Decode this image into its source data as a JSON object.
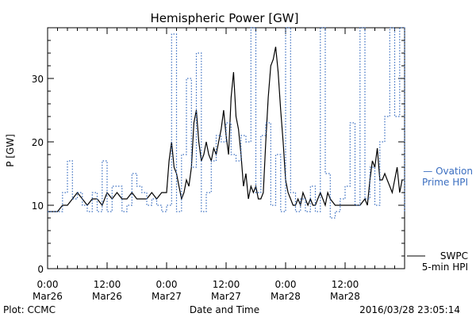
{
  "chart_data": {
    "type": "line",
    "title": "Hemispheric Power [GW]",
    "xlabel": "Date and Time",
    "ylabel": "P [GW]",
    "ylim": [
      0,
      38
    ],
    "yticks": [
      0,
      10,
      20,
      30
    ],
    "xlim_hours": [
      0,
      72
    ],
    "xticks": [
      {
        "time": "0:00",
        "date": "Mar26"
      },
      {
        "time": "12:00",
        "date": "Mar26"
      },
      {
        "time": "0:00",
        "date": "Mar27"
      },
      {
        "time": "12:00",
        "date": "Mar27"
      },
      {
        "time": "0:00",
        "date": "Mar28"
      },
      {
        "time": "12:00",
        "date": "Mar28"
      }
    ],
    "footer_left": "Plot: CCMC",
    "footer_right": "2016/03/28 23:05:14",
    "series": [
      {
        "name": "SWPC 5-min HPI",
        "legend_lines": [
          "SWPC",
          "5-min HPI"
        ],
        "color": "#000000",
        "style": "solid",
        "x": [
          0,
          2,
          3,
          4,
          5,
          6,
          7,
          8,
          9,
          10,
          11,
          12,
          13,
          14,
          15,
          16,
          17,
          18,
          19,
          20,
          21,
          22,
          23,
          24,
          24.5,
          25,
          25.5,
          26,
          26.5,
          27,
          27.5,
          28,
          28.5,
          29,
          29.5,
          30,
          30.5,
          31,
          31.5,
          32,
          32.5,
          33,
          33.5,
          34,
          34.5,
          35,
          35.5,
          36,
          36.5,
          37,
          37.5,
          38,
          38.5,
          39,
          39.5,
          40,
          40.5,
          41,
          41.5,
          42,
          42.5,
          43,
          43.5,
          44,
          44.5,
          45,
          45.5,
          46,
          46.5,
          47,
          47.5,
          48,
          48.5,
          49,
          49.5,
          50,
          50.5,
          51,
          51.5,
          52,
          52.5,
          53,
          53.5,
          54,
          54.5,
          55,
          55.5,
          56,
          56.5,
          57,
          58,
          59,
          60,
          61,
          62,
          63,
          64,
          64.5,
          65,
          65.5,
          66,
          66.5,
          67,
          67.5,
          68,
          68.5,
          69,
          69.5,
          70,
          70.5,
          71,
          71.5
        ],
        "y": [
          9,
          9,
          10,
          10,
          11,
          12,
          11,
          10,
          11,
          11,
          10,
          12,
          11,
          12,
          11,
          11,
          12,
          11,
          11,
          11,
          12,
          11,
          12,
          12,
          17,
          20,
          16,
          15,
          13,
          11,
          12,
          14,
          13,
          16,
          23,
          25,
          20,
          17,
          18,
          20,
          18,
          17,
          19,
          18,
          20,
          22,
          25,
          21,
          18,
          27,
          31,
          24,
          22,
          18,
          13,
          15,
          11,
          13,
          12,
          13,
          11,
          11,
          12,
          20,
          27,
          32,
          33,
          35,
          31,
          25,
          20,
          14,
          12,
          11,
          10,
          10,
          11,
          10,
          12,
          11,
          10,
          11,
          10,
          10,
          11,
          12,
          11,
          10,
          12,
          11,
          10,
          10,
          10,
          10,
          10,
          10,
          11,
          10,
          14,
          17,
          16,
          19,
          14,
          14,
          15,
          14,
          13,
          12,
          14,
          16,
          12,
          14
        ]
      },
      {
        "name": "Ovation Prime HPI",
        "legend_lines": [
          "— Ovation",
          "Prime HPI"
        ],
        "color": "#3a6ec0",
        "style": "dotted",
        "x": [
          0,
          3,
          4,
          5,
          6,
          7,
          8,
          9,
          10,
          11,
          12,
          13,
          14,
          15,
          16,
          17,
          18,
          19,
          20,
          21,
          22,
          23,
          24,
          25,
          26,
          27,
          28,
          29,
          30,
          31,
          32,
          33,
          34,
          35,
          36,
          37,
          38,
          39,
          40,
          41,
          42,
          43,
          44,
          45,
          46,
          47,
          48,
          49,
          50,
          51,
          52,
          53,
          54,
          55,
          56,
          57,
          58,
          59,
          60,
          61,
          62,
          63,
          64,
          65,
          66,
          67,
          68,
          69,
          70,
          71,
          72
        ],
        "y": [
          9,
          12,
          17,
          11,
          12,
          10,
          9,
          12,
          9,
          17,
          9,
          13,
          13,
          9,
          10,
          15,
          13,
          12,
          10,
          11,
          10,
          9,
          10,
          37,
          9,
          18,
          30,
          16,
          34,
          9,
          12,
          17,
          21,
          20,
          23,
          18,
          17,
          21,
          20,
          39,
          12,
          21,
          23,
          10,
          18,
          9,
          39,
          12,
          9,
          11,
          9,
          13,
          9,
          39,
          15,
          8,
          9,
          11,
          13,
          23,
          10,
          39,
          11,
          16,
          10,
          20,
          24,
          39,
          24,
          39,
          9
        ]
      }
    ]
  }
}
